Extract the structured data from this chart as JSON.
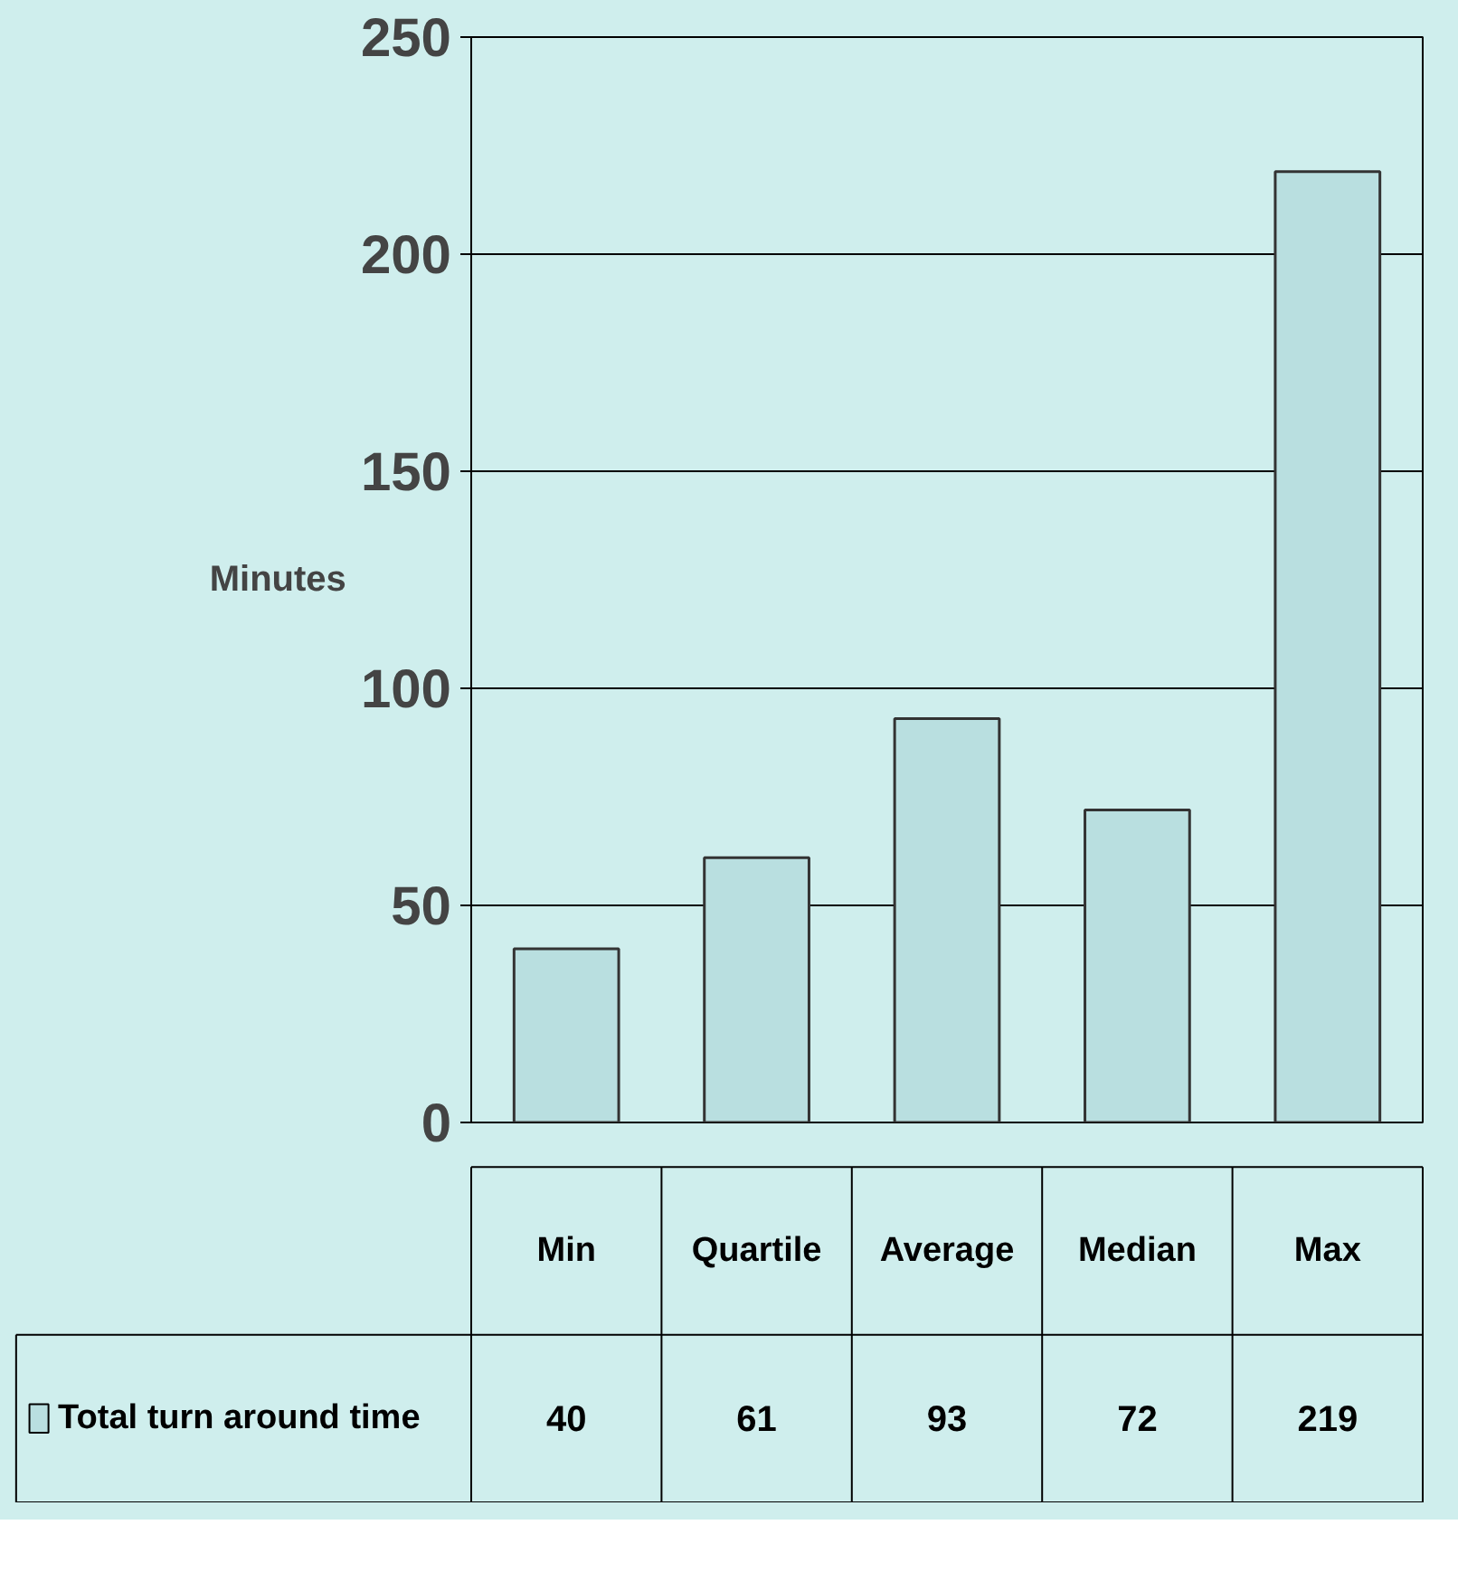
{
  "chart_data": {
    "type": "bar",
    "ylabel": "Minutes",
    "categories": [
      "Min",
      "Quartile",
      "Average",
      "Median",
      "Max"
    ],
    "series": [
      {
        "name": "Total turn around time",
        "color": "#b9dfe0",
        "values": [
          40,
          61,
          93,
          72,
          219
        ]
      }
    ],
    "ylim": [
      0,
      250
    ],
    "yticks": [
      0,
      50,
      100,
      150,
      200,
      250
    ],
    "grid": "y",
    "data_labels": true,
    "legend": "bottom"
  }
}
